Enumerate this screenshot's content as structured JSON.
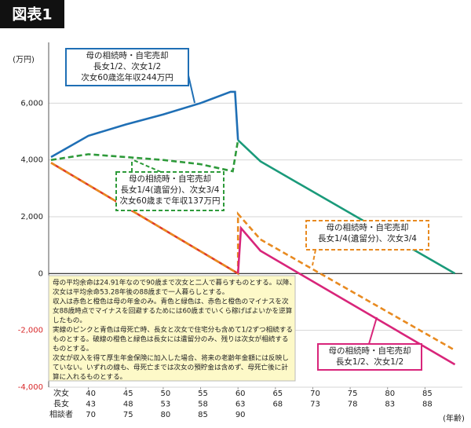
{
  "chart_data": {
    "type": "line",
    "title": "図表1",
    "y_unit": "(万円)",
    "x_unit": "(年齢)",
    "xlim": [
      35,
      90
    ],
    "ylim": [
      -4000,
      8000
    ],
    "yticks": [
      {
        "value": -4000,
        "label": "-4,000"
      },
      {
        "value": -2000,
        "label": "-2,000"
      },
      0,
      {
        "value": 2000,
        "label": "2,000"
      },
      {
        "value": 4000,
        "label": "4,000"
      },
      {
        "value": 6000,
        "label": "6,000"
      }
    ],
    "negative_tick_color": "#d8282a",
    "grid": true,
    "xticks": [
      40,
      45,
      50,
      55,
      60,
      65,
      70,
      75,
      80,
      85
    ],
    "xtick_rows": [
      {
        "label": "次女",
        "ticks": [
          40,
          45,
          50,
          55,
          60,
          65,
          70,
          75,
          80,
          85
        ]
      },
      {
        "label": "長女",
        "ticks": [
          43,
          48,
          53,
          58,
          63,
          68,
          73,
          78,
          83,
          88
        ]
      },
      {
        "label": "相談者",
        "ticks": [
          70,
          75,
          80,
          85,
          90
        ]
      }
    ],
    "series": [
      {
        "color": "#1f6fb5",
        "dashed": false,
        "x": [
          35,
          40,
          45,
          50,
          55,
          59,
          59.6,
          60
        ],
        "values": [
          4100,
          4850,
          5250,
          5600,
          6000,
          6400,
          6400,
          4700
        ]
      },
      {
        "color": "#1a9a7a",
        "dashed": false,
        "x": [
          60,
          63,
          89
        ],
        "values": [
          4700,
          3950,
          0
        ]
      },
      {
        "color": "#2e9a3a",
        "dashed": true,
        "x": [
          35,
          40,
          45,
          50,
          55,
          59.3,
          60
        ],
        "values": [
          4000,
          4200,
          4100,
          4000,
          3850,
          3600,
          4700
        ]
      },
      {
        "color": "#e03a2a",
        "dashed": false,
        "x": [
          35,
          60
        ],
        "values": [
          3900,
          0
        ]
      },
      {
        "color": "#e88a20",
        "dashed": true,
        "x": [
          35,
          60,
          60,
          63,
          89
        ],
        "values": [
          3900,
          0,
          2100,
          1200,
          -2700
        ]
      },
      {
        "color": "#d8257a",
        "dashed": false,
        "x": [
          60,
          60.4,
          63,
          89
        ],
        "values": [
          0,
          1600,
          800,
          -3200
        ]
      }
    ],
    "annotations": [
      {
        "color": "#1f6fb5",
        "dashed": false,
        "lines": [
          "母の相続時・自宅売却",
          "長女1/2、次女1/2",
          "次女60歳迄年収244万円"
        ]
      },
      {
        "color": "#2e9a3a",
        "dashed": true,
        "lines": [
          "母の相続時・自宅売却",
          "長女1/4(遺留分)、次女3/4",
          "次女60歳まで年収137万円"
        ]
      },
      {
        "color": "#e88a20",
        "dashed": true,
        "lines": [
          "母の相続時・自宅売却",
          "長女1/4(遺留分)、次女3/4"
        ]
      },
      {
        "color": "#d8257a",
        "dashed": false,
        "lines": [
          "母の相続時・自宅売却",
          "長女1/2、次女1/2"
        ]
      }
    ],
    "note": [
      "母の平均余命は24.91年なので90歳まで次女と二人で暮らすものとする。以降、",
      "次女は平均余命53.28年後の88歳まで一人暮らしとする。",
      "収入は赤色と橙色は母の年金のみ。青色と緑色は、赤色と橙色のマイナスを次",
      "女88歳時点でマイナスを回避するためには60歳までいくら稼げばよいかを逆算",
      "したもの。",
      "実線のピンクと青色は母死亡時、長女と次女で住宅分も含めて1/2ずつ相続する",
      "ものとする。破線の橙色と緑色は長女には遺留分のみ、残りは次女が相続する",
      "ものとする。",
      "次女が収入を得て厚生年金保険に加入した場合、将来の老齢年金額には反映し",
      "ていない。いずれの線も、母死亡までは次女の預貯金は含めず、母死亡後に計",
      "算に入れるものとする。"
    ]
  }
}
